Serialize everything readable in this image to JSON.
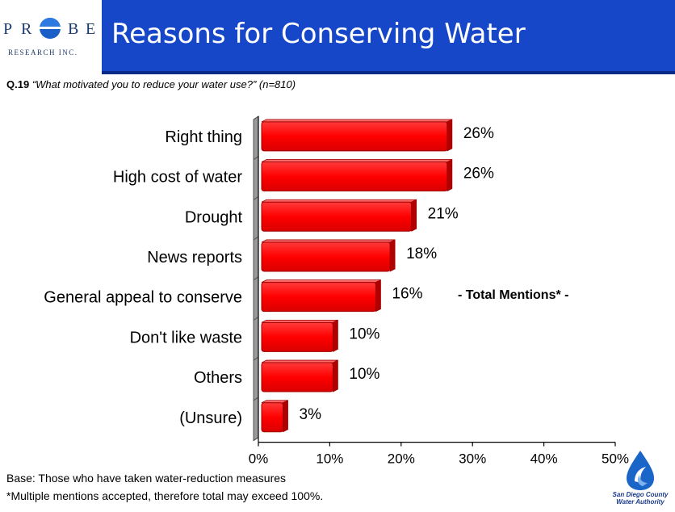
{
  "header": {
    "logo_letters": [
      "P",
      "R",
      "B",
      "E"
    ],
    "logo_subtitle": "RESEARCH INC.",
    "title": "Reasons for Conserving Water"
  },
  "question": {
    "number": "Q.19",
    "text": "“What motivated you to reduce your water use?”",
    "sample": "(n=810)"
  },
  "annotation": "- Total Mentions* -",
  "footnotes": {
    "base": "Base:  Those who have taken water-reduction measures",
    "note": "*Multiple mentions accepted, therefore total may exceed 100%."
  },
  "sdcwa_logo": {
    "line1": "San Diego County",
    "line2": "Water Authority"
  },
  "chart_data": {
    "type": "bar",
    "orientation": "horizontal",
    "categories": [
      "Right thing",
      "High cost of water",
      "Drought",
      "News reports",
      "General appeal to conserve",
      "Don't like waste",
      "Others",
      "(Unsure)"
    ],
    "values": [
      26,
      26,
      21,
      18,
      16,
      10,
      10,
      3
    ],
    "value_labels": [
      "26%",
      "26%",
      "21%",
      "18%",
      "16%",
      "10%",
      "10%",
      "3%"
    ],
    "xlim": [
      0,
      50
    ],
    "x_ticks": [
      "0%",
      "10%",
      "20%",
      "30%",
      "40%",
      "50%"
    ],
    "bar_color": "#ff0000",
    "grid": false,
    "title": "",
    "xlabel": "",
    "ylabel": ""
  }
}
